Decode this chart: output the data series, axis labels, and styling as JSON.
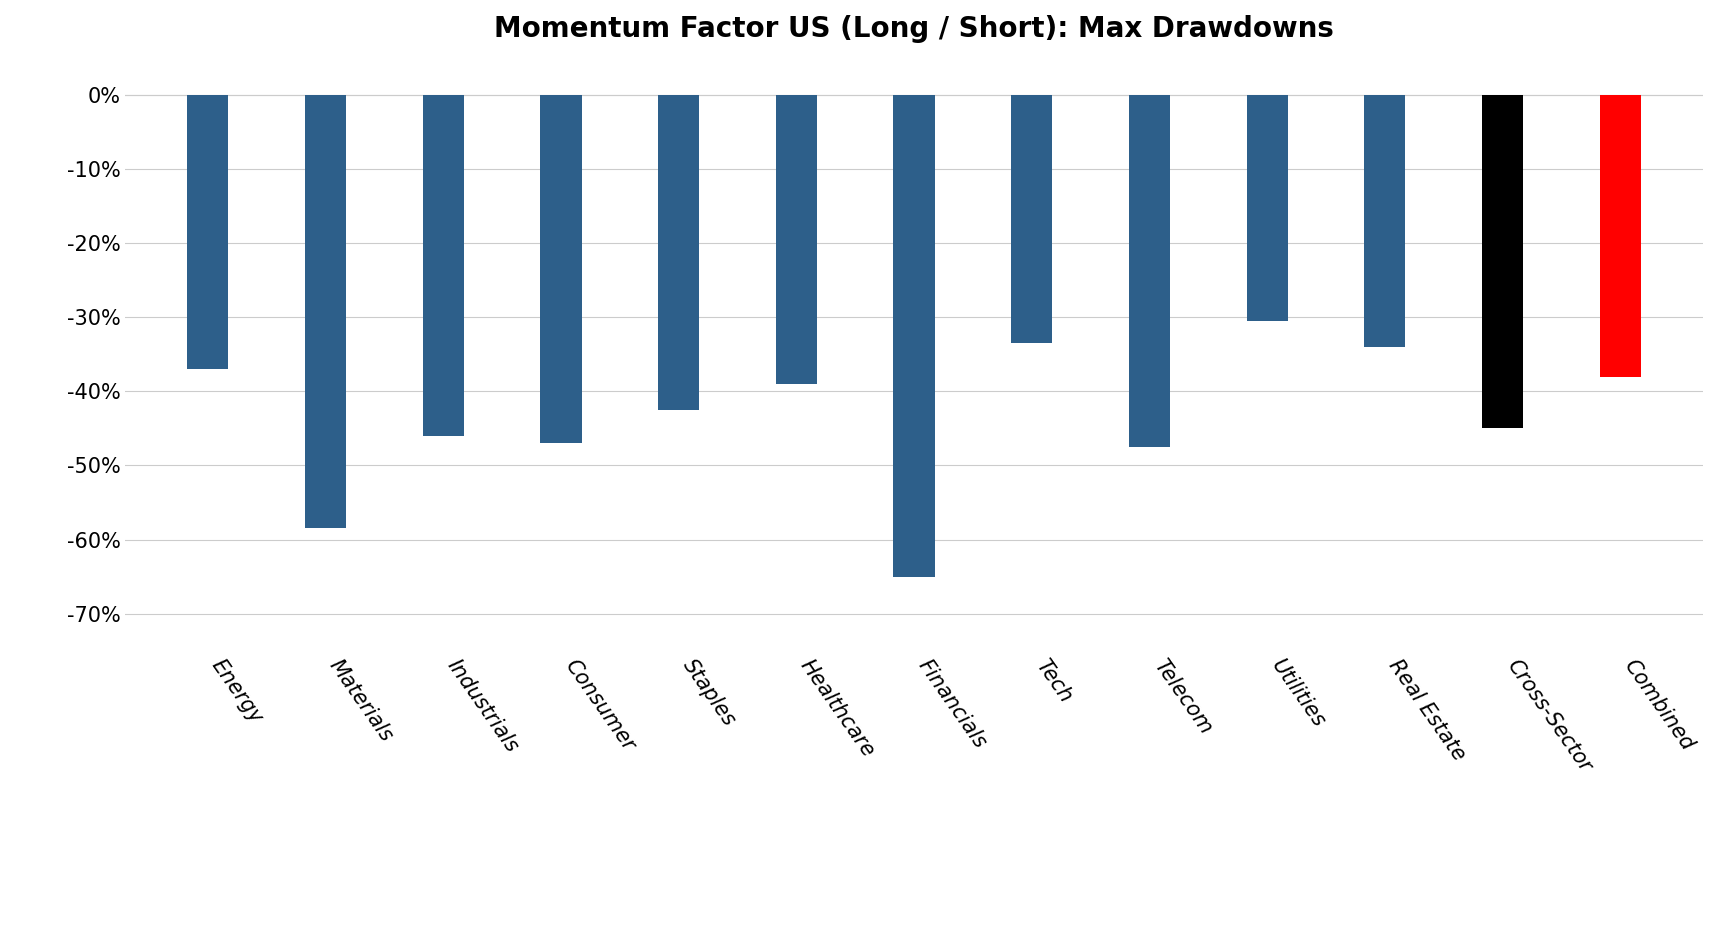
{
  "categories": [
    "Energy",
    "Materials",
    "Industrials",
    "Consumer",
    "Staples",
    "Healthcare",
    "Financials",
    "Tech",
    "Telecom",
    "Utilities",
    "Real Estate",
    "Cross-Sector",
    "Combined"
  ],
  "values": [
    -37.0,
    -58.5,
    -46.0,
    -47.0,
    -42.5,
    -39.0,
    -65.0,
    -33.5,
    -47.5,
    -30.5,
    -34.0,
    -45.0,
    -38.0
  ],
  "bar_colors": [
    "#2d5f8a",
    "#2d5f8a",
    "#2d5f8a",
    "#2d5f8a",
    "#2d5f8a",
    "#2d5f8a",
    "#2d5f8a",
    "#2d5f8a",
    "#2d5f8a",
    "#2d5f8a",
    "#2d5f8a",
    "#000000",
    "#ff0000"
  ],
  "title": "Momentum Factor US (Long / Short): Max Drawdowns",
  "ylim": [
    -75,
    5
  ],
  "yticks": [
    0,
    -10,
    -20,
    -30,
    -40,
    -50,
    -60,
    -70
  ],
  "title_fontsize": 20,
  "tick_fontsize": 15,
  "label_rotation": -55,
  "bar_width": 0.35,
  "background_color": "#ffffff",
  "grid_color": "#cccccc"
}
